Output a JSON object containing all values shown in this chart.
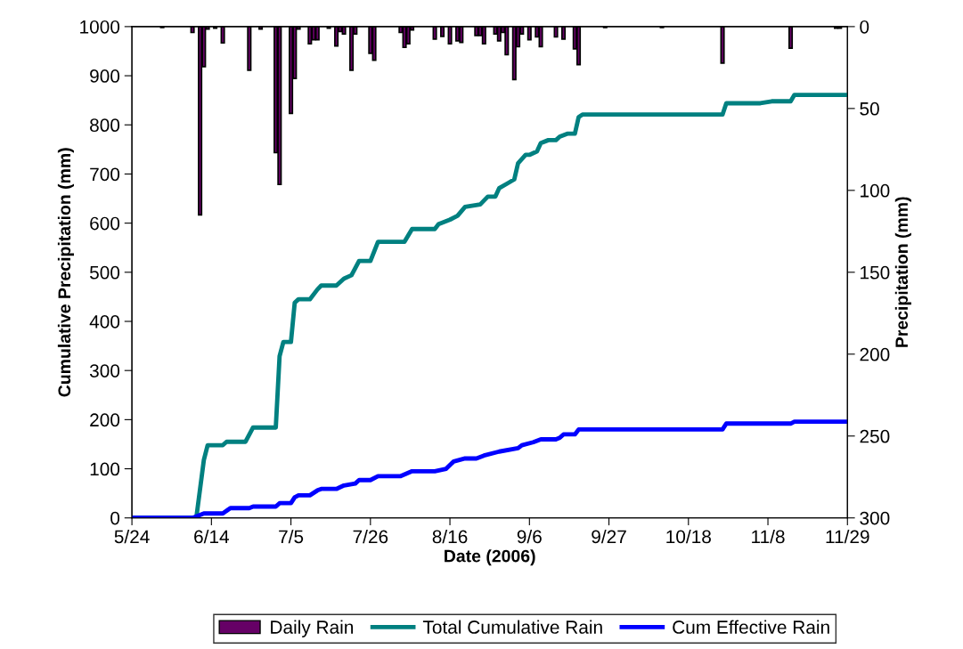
{
  "chart_data": {
    "type": "line",
    "xlabel": "Date (2006)",
    "ylabel": "Cumulative Precipitation (mm)",
    "y2label": "Precipitation (mm)",
    "xlim": [
      "2006-05-24",
      "2006-11-29"
    ],
    "xticks": [
      {
        "value": "2006-05-24",
        "label": "5/24"
      },
      {
        "value": "2006-06-14",
        "label": "6/14"
      },
      {
        "value": "2006-07-05",
        "label": "7/5"
      },
      {
        "value": "2006-07-26",
        "label": "7/26"
      },
      {
        "value": "2006-08-16",
        "label": "8/16"
      },
      {
        "value": "2006-09-06",
        "label": "9/6"
      },
      {
        "value": "2006-09-27",
        "label": "9/27"
      },
      {
        "value": "2006-10-18",
        "label": "10/18"
      },
      {
        "value": "2006-11-08",
        "label": "11/8"
      },
      {
        "value": "2006-11-29",
        "label": "11/29"
      }
    ],
    "ylim": [
      0,
      1000
    ],
    "yticks": [
      0,
      100,
      200,
      300,
      400,
      500,
      600,
      700,
      800,
      900,
      1000
    ],
    "y2lim": [
      300,
      0
    ],
    "y2ticks": [
      0,
      50,
      100,
      150,
      200,
      250,
      300
    ],
    "grid": false,
    "legend": "bottom",
    "marker": "none",
    "line_style": "solid",
    "series": [
      {
        "name": "Daily Rain",
        "type": "bar",
        "axis": "y2",
        "color": "#660066",
        "x": [
          "2006-06-01",
          "2006-06-09",
          "2006-06-11",
          "2006-06-12",
          "2006-06-13",
          "2006-06-15",
          "2006-06-17",
          "2006-06-24",
          "2006-06-27",
          "2006-07-01",
          "2006-07-02",
          "2006-07-05",
          "2006-07-06",
          "2006-07-07",
          "2006-07-10",
          "2006-07-11",
          "2006-07-12",
          "2006-07-15",
          "2006-07-17",
          "2006-07-18",
          "2006-07-19",
          "2006-07-21",
          "2006-07-22",
          "2006-07-26",
          "2006-07-27",
          "2006-08-03",
          "2006-08-04",
          "2006-08-05",
          "2006-08-06",
          "2006-08-12",
          "2006-08-14",
          "2006-08-16",
          "2006-08-18",
          "2006-08-19",
          "2006-08-23",
          "2006-08-24",
          "2006-08-25",
          "2006-08-28",
          "2006-08-29",
          "2006-08-30",
          "2006-08-31",
          "2006-09-02",
          "2006-09-03",
          "2006-09-04",
          "2006-09-06",
          "2006-09-08",
          "2006-09-09",
          "2006-09-13",
          "2006-09-15",
          "2006-09-18",
          "2006-09-19",
          "2006-09-26",
          "2006-10-11",
          "2006-10-27",
          "2006-11-14",
          "2006-11-26",
          "2006-11-27"
        ],
        "values": [
          0.5,
          3.6,
          115,
          24.5,
          1.5,
          1,
          10,
          26.6,
          1.5,
          77,
          96.4,
          53,
          31.7,
          1.5,
          10.5,
          8,
          8,
          1,
          11.8,
          3,
          4.5,
          26.6,
          4.5,
          16.3,
          20.5,
          3.6,
          12.7,
          10.5,
          2,
          7.6,
          6,
          10.5,
          8.7,
          9.6,
          5.4,
          5.4,
          10.5,
          4.5,
          8.7,
          3.6,
          17.2,
          32.3,
          12.3,
          4.5,
          8,
          6.3,
          12.2,
          6.3,
          7.6,
          13.6,
          23.2,
          0.5,
          0.5,
          22.3,
          13.2,
          1,
          1
        ]
      },
      {
        "name": "Total Cumulative Rain",
        "color": "#008080",
        "x": [
          "2006-05-24",
          "2006-06-10",
          "2006-06-12",
          "2006-06-13",
          "2006-06-17",
          "2006-06-18",
          "2006-06-23",
          "2006-06-25",
          "2006-07-01",
          "2006-07-02",
          "2006-07-03",
          "2006-07-05",
          "2006-07-06",
          "2006-07-07",
          "2006-07-10",
          "2006-07-12",
          "2006-07-13",
          "2006-07-17",
          "2006-07-19",
          "2006-07-21",
          "2006-07-23",
          "2006-07-26",
          "2006-07-28",
          "2006-08-04",
          "2006-08-06",
          "2006-08-12",
          "2006-08-13",
          "2006-08-16",
          "2006-08-18",
          "2006-08-20",
          "2006-08-24",
          "2006-08-26",
          "2006-08-28",
          "2006-08-29",
          "2006-08-31",
          "2006-09-02",
          "2006-09-03",
          "2006-09-05",
          "2006-09-06",
          "2006-09-08",
          "2006-09-09",
          "2006-09-11",
          "2006-09-13",
          "2006-09-14",
          "2006-09-16",
          "2006-09-18",
          "2006-09-19",
          "2006-09-20",
          "2006-10-27",
          "2006-10-28",
          "2006-11-06",
          "2006-11-09",
          "2006-11-14",
          "2006-11-15",
          "2006-11-29"
        ],
        "values": [
          0,
          0,
          118,
          148,
          148,
          155,
          155,
          184,
          184,
          329,
          358,
          358,
          438,
          445,
          445,
          465,
          473,
          473,
          487,
          494,
          523,
          523,
          562,
          562,
          588,
          588,
          598,
          607,
          615,
          633,
          638,
          654,
          654,
          671,
          680,
          689,
          722,
          739,
          739,
          746,
          763,
          769,
          769,
          776,
          782,
          782,
          816,
          821,
          821,
          844,
          844,
          848,
          848,
          861,
          861
        ]
      },
      {
        "name": "Cum Effective Rain",
        "color": "#0000ff",
        "x": [
          "2006-05-24",
          "2006-06-09",
          "2006-06-12",
          "2006-06-17",
          "2006-06-19",
          "2006-06-24",
          "2006-06-25",
          "2006-07-01",
          "2006-07-02",
          "2006-07-05",
          "2006-07-06",
          "2006-07-07",
          "2006-07-10",
          "2006-07-12",
          "2006-07-13",
          "2006-07-17",
          "2006-07-19",
          "2006-07-22",
          "2006-07-23",
          "2006-07-26",
          "2006-07-28",
          "2006-08-03",
          "2006-08-06",
          "2006-08-12",
          "2006-08-15",
          "2006-08-17",
          "2006-08-20",
          "2006-08-23",
          "2006-08-25",
          "2006-08-29",
          "2006-09-03",
          "2006-09-04",
          "2006-09-07",
          "2006-09-09",
          "2006-09-13",
          "2006-09-14",
          "2006-09-15",
          "2006-09-18",
          "2006-09-19",
          "2006-10-27",
          "2006-10-28",
          "2006-11-14",
          "2006-11-15",
          "2006-11-29"
        ],
        "values": [
          0,
          0,
          9,
          9,
          20,
          20,
          23,
          23,
          30,
          30,
          42,
          46,
          46,
          56,
          59,
          59,
          66,
          70,
          77,
          77,
          85,
          85,
          95,
          95,
          100,
          115,
          121,
          121,
          127,
          135,
          142,
          148,
          154,
          160,
          160,
          163,
          170,
          170,
          180,
          180,
          192,
          192,
          196,
          196
        ]
      }
    ]
  }
}
